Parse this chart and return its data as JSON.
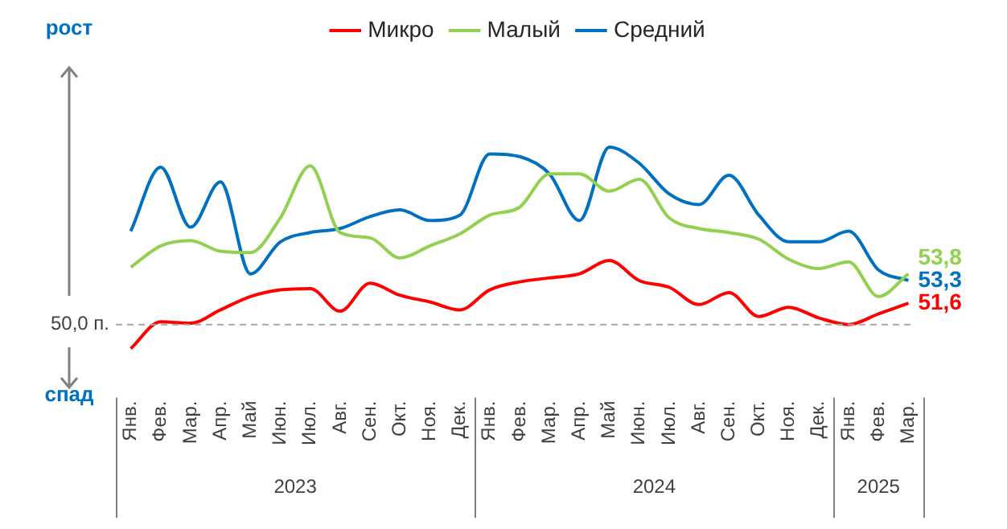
{
  "chart_data": {
    "type": "line",
    "categories": [
      "Янв.",
      "Фев.",
      "Мар.",
      "Апр.",
      "Май",
      "Июн.",
      "Июл.",
      "Авг.",
      "Сен.",
      "Окт.",
      "Ноя.",
      "Дек.",
      "Янв.",
      "Фев.",
      "Мар.",
      "Апр.",
      "Май",
      "Июн.",
      "Июл.",
      "Авг.",
      "Сен.",
      "Окт.",
      "Ноя.",
      "Дек.",
      "Янв.",
      "Фев.",
      "Мар."
    ],
    "tick_labels": "x",
    "legend": "top",
    "series": [
      {
        "name": "Микро",
        "color": "#ff0000",
        "values": [
          48.2,
          50.2,
          50.1,
          51.1,
          52.1,
          52.6,
          52.7,
          51.0,
          53.1,
          52.2,
          51.7,
          51.1,
          52.6,
          53.2,
          53.5,
          53.8,
          54.8,
          53.3,
          52.8,
          51.5,
          52.4,
          50.6,
          51.3,
          50.5,
          50.0,
          50.8,
          51.6
        ],
        "value_labels": [
          null,
          null,
          null,
          null,
          null,
          null,
          null,
          null,
          null,
          null,
          null,
          null,
          null,
          null,
          null,
          null,
          null,
          null,
          null,
          null,
          null,
          null,
          null,
          null,
          null,
          null,
          "51,6"
        ]
      },
      {
        "name": "Малый",
        "color": "#92d050",
        "values": [
          54.3,
          55.9,
          56.3,
          55.5,
          55.4,
          58.0,
          61.9,
          56.9,
          56.5,
          55.0,
          55.9,
          56.8,
          58.2,
          58.8,
          61.3,
          61.3,
          60.0,
          60.9,
          58.0,
          57.2,
          56.9,
          56.4,
          54.9,
          54.2,
          54.7,
          52.1,
          53.8
        ],
        "value_labels": [
          null,
          null,
          null,
          null,
          null,
          null,
          null,
          null,
          null,
          null,
          null,
          null,
          null,
          null,
          null,
          null,
          null,
          null,
          null,
          null,
          null,
          null,
          null,
          null,
          null,
          null,
          "53,8"
        ]
      },
      {
        "name": "Средний",
        "color": "#0070c0",
        "values": [
          57.0,
          61.8,
          57.3,
          60.7,
          53.8,
          56.2,
          56.9,
          57.2,
          58.1,
          58.6,
          57.8,
          58.2,
          62.8,
          62.6,
          61.3,
          57.8,
          63.3,
          62.1,
          59.8,
          59.0,
          61.2,
          58.2,
          56.2,
          56.2,
          57.0,
          54.1,
          53.3
        ],
        "value_labels": [
          null,
          null,
          null,
          null,
          null,
          null,
          null,
          null,
          null,
          null,
          null,
          null,
          null,
          null,
          null,
          null,
          null,
          null,
          null,
          null,
          null,
          null,
          null,
          null,
          null,
          null,
          "53,3"
        ]
      }
    ],
    "ref_lines": [
      {
        "axis": "y",
        "value": 50,
        "label": "50,0 п.",
        "color": "#a6a6a6",
        "line_style": "dashed"
      }
    ],
    "annotations": [
      "рост",
      "спад",
      "2023",
      "2024",
      "2025"
    ]
  }
}
